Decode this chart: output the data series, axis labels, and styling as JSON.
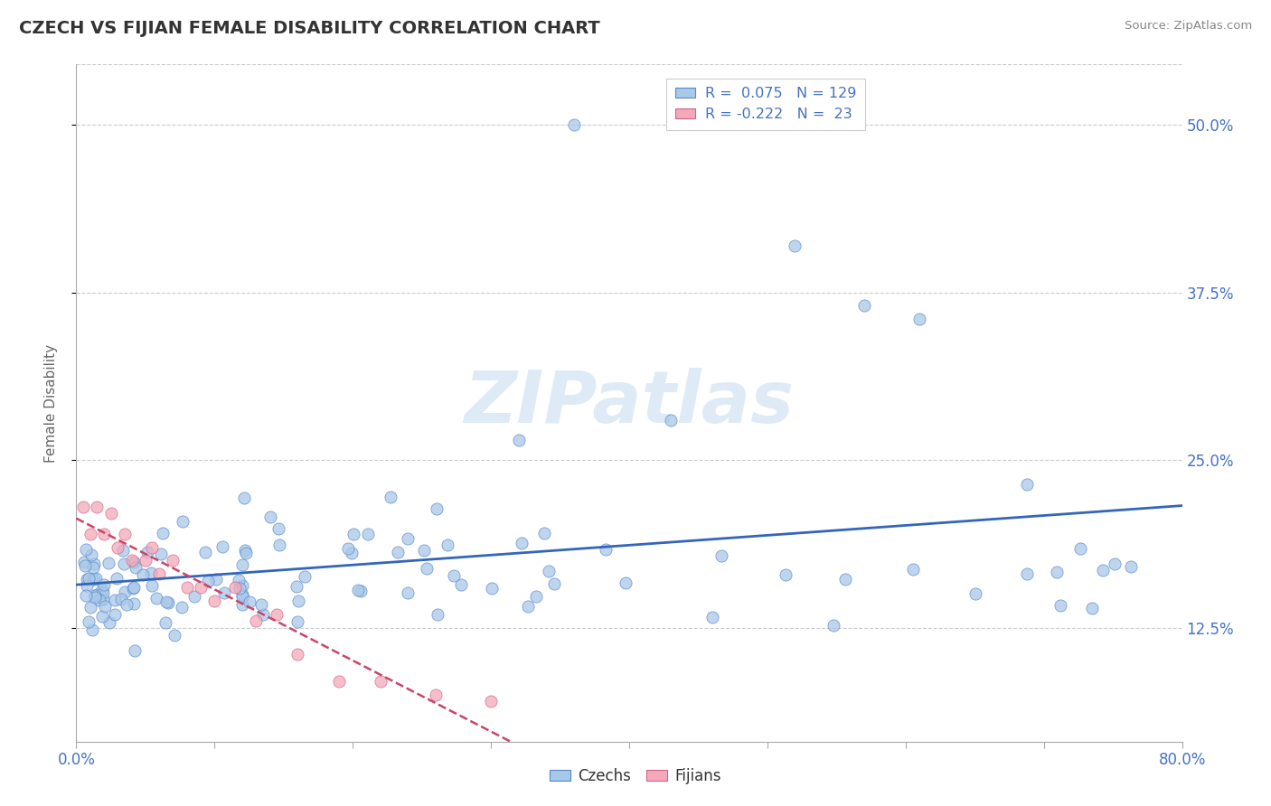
{
  "title": "CZECH VS FIJIAN FEMALE DISABILITY CORRELATION CHART",
  "source": "Source: ZipAtlas.com",
  "ylabel": "Female Disability",
  "ytick_labels": [
    "12.5%",
    "25.0%",
    "37.5%",
    "50.0%"
  ],
  "ytick_values": [
    0.125,
    0.25,
    0.375,
    0.5
  ],
  "xmin": 0.0,
  "xmax": 0.8,
  "ymin": 0.04,
  "ymax": 0.545,
  "czech_R": 0.075,
  "czech_N": 129,
  "fijian_R": -0.222,
  "fijian_N": 23,
  "czech_color": "#a8c8e8",
  "fijian_color": "#f4a8b8",
  "czech_edge_color": "#5588cc",
  "fijian_edge_color": "#cc6688",
  "czech_line_color": "#3366bb",
  "fijian_line_color": "#cc4466",
  "background_color": "#ffffff",
  "grid_color": "#cccccc",
  "watermark_color": "#c8dff0",
  "title_color": "#333333",
  "axis_label_color": "#666666",
  "tick_color": "#4472c4"
}
